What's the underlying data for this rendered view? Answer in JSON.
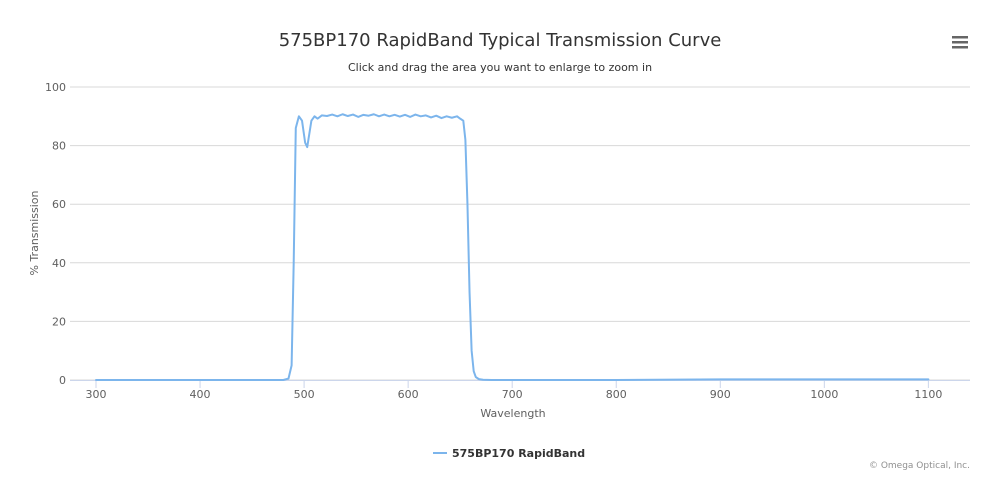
{
  "chart_data": {
    "type": "line",
    "title": "575BP170 RapidBand Typical Transmission Curve",
    "subtitle": "Click and drag the area you want to enlarge to zoom in",
    "xlabel": "Wavelength",
    "ylabel": "% Transmission",
    "xlim": [
      275,
      1140
    ],
    "ylim": [
      0,
      100
    ],
    "xticks": [
      300,
      400,
      500,
      600,
      700,
      800,
      900,
      1000,
      1100
    ],
    "yticks": [
      0,
      20,
      40,
      60,
      80,
      100
    ],
    "grid": "horizontal",
    "legend": "bottom-center",
    "series": [
      {
        "name": "575BP170 RapidBand",
        "color": "#7cb5ec",
        "x": [
          300,
          400,
          480,
          485,
          488,
          490,
          492,
          495,
          498,
          501,
          503,
          505,
          507,
          510,
          513,
          517,
          522,
          527,
          532,
          537,
          542,
          547,
          552,
          557,
          562,
          567,
          572,
          577,
          582,
          587,
          592,
          597,
          602,
          607,
          612,
          617,
          622,
          627,
          632,
          637,
          642,
          647,
          650,
          653,
          655,
          657,
          659,
          661,
          663,
          665,
          668,
          672,
          680,
          700,
          800,
          900,
          1000,
          1100
        ],
        "y": [
          0,
          0,
          0,
          0.5,
          5,
          40,
          86,
          90,
          88.5,
          81,
          79.5,
          84,
          88.5,
          90,
          89.2,
          90.3,
          90.1,
          90.6,
          90,
          90.7,
          90.1,
          90.6,
          89.8,
          90.5,
          90.2,
          90.7,
          90,
          90.6,
          90,
          90.5,
          89.9,
          90.5,
          89.8,
          90.6,
          90,
          90.3,
          89.6,
          90.2,
          89.4,
          90,
          89.5,
          90,
          89.2,
          88.5,
          82,
          60,
          30,
          10,
          3,
          1,
          0.3,
          0.1,
          0,
          0,
          0,
          0.2,
          0.2,
          0.2
        ]
      }
    ]
  },
  "credit": "© Omega Optical, Inc.",
  "menu_icon": "hamburger-menu-icon"
}
